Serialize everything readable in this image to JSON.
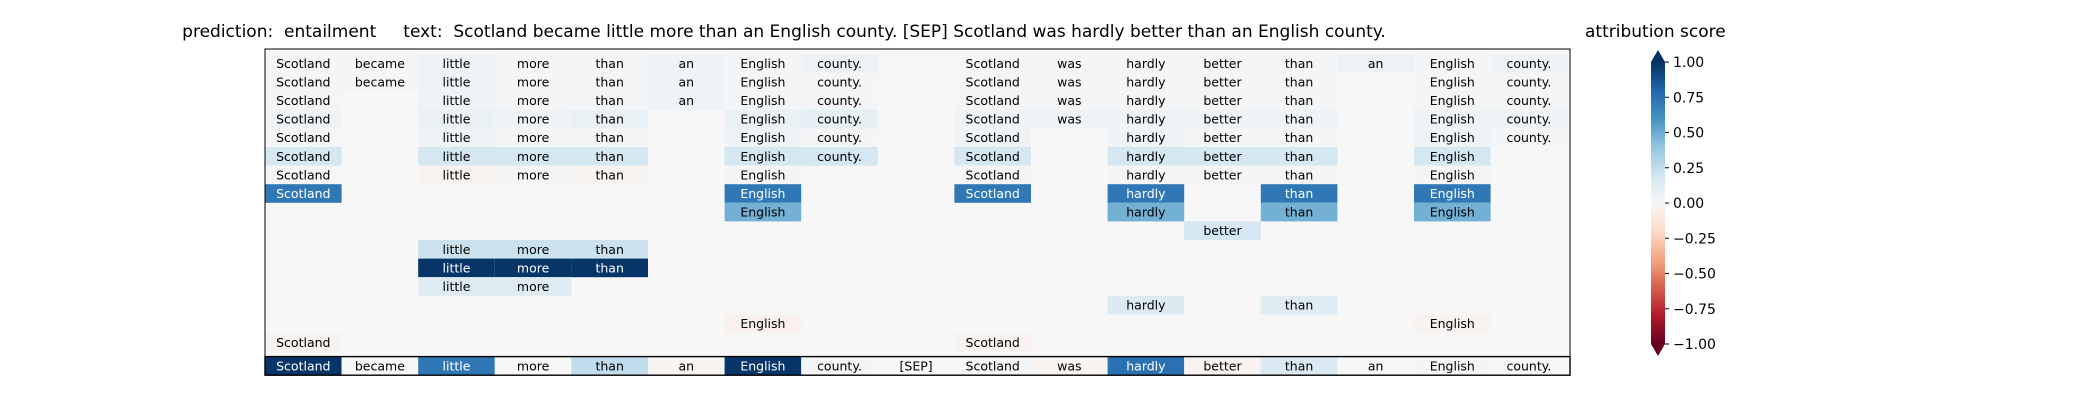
{
  "chart_data": {
    "type": "heatmap",
    "title_prediction_label": "prediction:",
    "title_prediction": "entailment",
    "title_text_label": "text:",
    "title_text": "Scotland became little more than an English county. [SEP] Scotland was hardly better than an English county.",
    "tokens": [
      "Scotland",
      "became",
      "little",
      "more",
      "than",
      "an",
      "English",
      "county.",
      "[SEP]",
      "Scotland",
      "was",
      "hardly",
      "better",
      "than",
      "an",
      "English",
      "county."
    ],
    "rows": [
      [
        0.02,
        0.02,
        0.05,
        0.02,
        0.02,
        0.05,
        0.02,
        0.06,
        null,
        0.02,
        0.02,
        0.02,
        0.02,
        0.02,
        0.06,
        0.02,
        0.04
      ],
      [
        0.02,
        0.02,
        0.04,
        0.02,
        0.02,
        0.04,
        0.02,
        0.02,
        null,
        0.02,
        0.02,
        0.02,
        0.02,
        0.02,
        null,
        0.02,
        0.02
      ],
      [
        0.02,
        null,
        0.04,
        0.02,
        0.02,
        0.04,
        0.02,
        0.02,
        null,
        0.02,
        0.02,
        0.02,
        0.02,
        0.02,
        null,
        0.02,
        0.02
      ],
      [
        0.04,
        null,
        0.07,
        0.04,
        0.07,
        null,
        0.07,
        0.09,
        null,
        0.04,
        0.04,
        0.04,
        0.04,
        0.04,
        null,
        0.04,
        0.04
      ],
      [
        0.02,
        null,
        0.04,
        0.02,
        0.02,
        null,
        0.04,
        0.02,
        null,
        0.04,
        null,
        0.04,
        0.02,
        0.02,
        null,
        0.04,
        0.02
      ],
      [
        0.18,
        null,
        0.18,
        0.18,
        0.18,
        null,
        0.18,
        0.18,
        null,
        0.18,
        null,
        0.18,
        0.18,
        0.18,
        null,
        0.18,
        null
      ],
      [
        0.02,
        null,
        -0.03,
        0.02,
        -0.02,
        null,
        0.02,
        null,
        null,
        0.02,
        null,
        0.02,
        0.02,
        0.02,
        null,
        0.02,
        null
      ],
      [
        0.72,
        null,
        null,
        null,
        null,
        null,
        0.72,
        null,
        null,
        0.72,
        null,
        0.72,
        null,
        0.72,
        null,
        0.72,
        null
      ],
      [
        null,
        null,
        null,
        null,
        null,
        null,
        0.48,
        null,
        null,
        null,
        null,
        0.48,
        null,
        0.48,
        null,
        0.48,
        null
      ],
      [
        null,
        null,
        null,
        null,
        null,
        null,
        null,
        null,
        null,
        null,
        null,
        null,
        0.18,
        null,
        null,
        null,
        null
      ],
      [
        null,
        null,
        0.22,
        0.22,
        0.22,
        null,
        null,
        null,
        null,
        null,
        null,
        null,
        null,
        null,
        null,
        null,
        null
      ],
      [
        null,
        null,
        0.98,
        0.98,
        0.98,
        null,
        null,
        null,
        null,
        null,
        null,
        null,
        null,
        null,
        null,
        null,
        null
      ],
      [
        null,
        null,
        0.13,
        0.13,
        null,
        null,
        null,
        null,
        null,
        null,
        null,
        null,
        null,
        null,
        null,
        null,
        null
      ],
      [
        null,
        null,
        null,
        null,
        null,
        null,
        null,
        null,
        null,
        null,
        null,
        0.14,
        null,
        0.12,
        null,
        null,
        null
      ],
      [
        null,
        null,
        null,
        null,
        null,
        null,
        -0.04,
        null,
        null,
        null,
        null,
        null,
        null,
        null,
        null,
        -0.03,
        null
      ],
      [
        -0.03,
        null,
        null,
        null,
        null,
        null,
        null,
        null,
        null,
        -0.03,
        null,
        null,
        null,
        null,
        null,
        null,
        null
      ]
    ],
    "bottom_row": [
      0.98,
      0.0,
      0.72,
      0.0,
      0.25,
      -0.02,
      0.98,
      0.02,
      0.0,
      0.02,
      -0.02,
      0.75,
      -0.03,
      0.15,
      0.0,
      0.02,
      0.0
    ],
    "colorbar": {
      "label": "attribution score",
      "range": [
        -1.0,
        1.0
      ],
      "ticks": [
        1.0,
        0.75,
        0.5,
        0.25,
        0.0,
        -0.25,
        -0.5,
        -0.75,
        -1.0
      ],
      "tick_labels": [
        "1.00",
        "0.75",
        "0.50",
        "0.25",
        "0.00",
        "−0.25",
        "−0.50",
        "−0.75",
        "−1.00"
      ],
      "colormap": "RdBu"
    }
  }
}
